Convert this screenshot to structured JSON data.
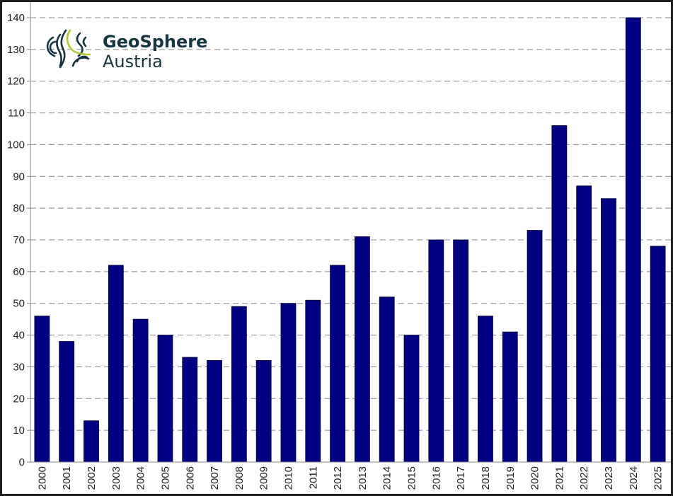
{
  "logo": {
    "line1": "GeoSphere",
    "line2": "Austria",
    "accent_color": "#b5c834",
    "text_color": "#173540"
  },
  "chart_data": {
    "type": "bar",
    "title": "",
    "xlabel": "",
    "ylabel": "",
    "categories": [
      "2000",
      "2001",
      "2002",
      "2003",
      "2004",
      "2005",
      "2006",
      "2007",
      "2008",
      "2009",
      "2010",
      "2011",
      "2012",
      "2013",
      "2014",
      "2015",
      "2016",
      "2017",
      "2018",
      "2019",
      "2020",
      "2021",
      "2022",
      "2023",
      "2024",
      "2025"
    ],
    "values": [
      46,
      38,
      13,
      62,
      45,
      40,
      33,
      32,
      49,
      32,
      50,
      51,
      62,
      71,
      52,
      40,
      70,
      70,
      46,
      41,
      73,
      106,
      87,
      83,
      140,
      68
    ],
    "ylim": [
      0,
      140
    ],
    "yticks": [
      0,
      10,
      20,
      30,
      40,
      50,
      60,
      70,
      80,
      90,
      100,
      110,
      120,
      130,
      140
    ],
    "grid": "horizontal dashed",
    "legend": "none",
    "bar_color": "#000080"
  }
}
